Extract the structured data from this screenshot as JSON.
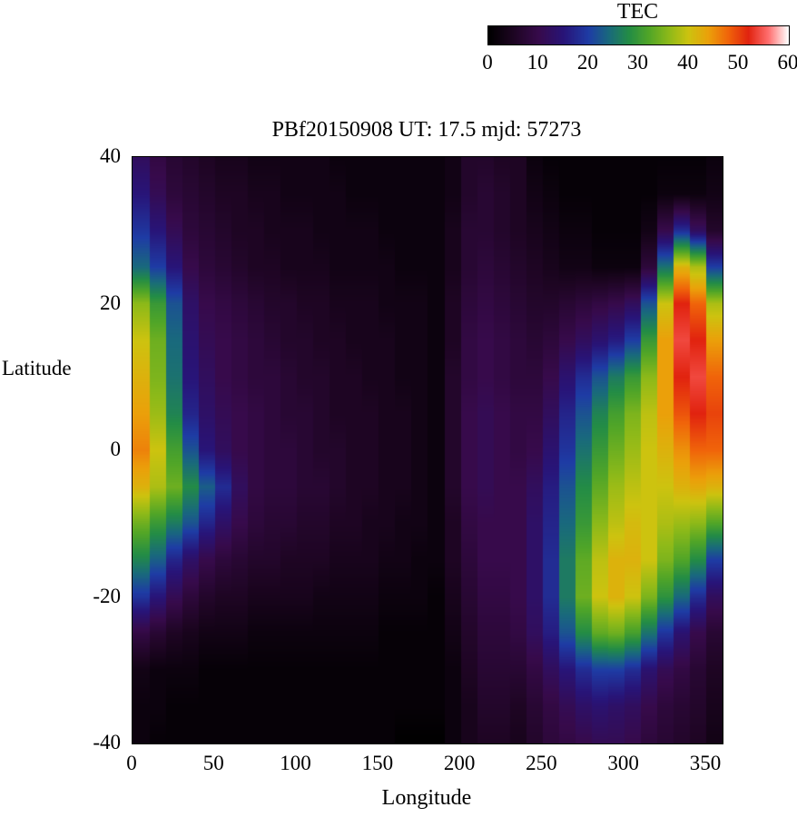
{
  "title": "PBf20150908  UT: 17.5  mjd: 57273",
  "colorbar": {
    "title": "TEC",
    "min": 0,
    "max": 60,
    "ticks": [
      0,
      10,
      20,
      30,
      40,
      50,
      60
    ]
  },
  "axes": {
    "xlabel": "Longitude",
    "ylabel": "Latitude",
    "x_range": [
      0,
      360
    ],
    "y_range": [
      -40,
      40
    ],
    "x_ticks": [
      0,
      50,
      100,
      150,
      200,
      250,
      300,
      350
    ],
    "y_ticks": [
      40,
      20,
      0,
      -20,
      -40
    ]
  },
  "chart_data": {
    "type": "heatmap",
    "title": "PBf20150908  UT: 17.5  mjd: 57273",
    "xlabel": "Longitude",
    "ylabel": "Latitude",
    "value_label": "TEC",
    "value_range": [
      0,
      60
    ],
    "lons": [
      0,
      10,
      20,
      30,
      40,
      50,
      60,
      70,
      80,
      90,
      100,
      110,
      120,
      130,
      140,
      150,
      160,
      170,
      180,
      190,
      200,
      210,
      220,
      230,
      240,
      250,
      260,
      270,
      280,
      290,
      300,
      310,
      320,
      330,
      340,
      350
    ],
    "lats": [
      40,
      35,
      30,
      25,
      20,
      15,
      10,
      5,
      0,
      -5,
      -10,
      -15,
      -20,
      -25,
      -30,
      -35,
      -40
    ],
    "values": [
      [
        12,
        9,
        7,
        6,
        5,
        4,
        4,
        3,
        3,
        3,
        3,
        3,
        2,
        2,
        2,
        2,
        2,
        2,
        2,
        3,
        6,
        6,
        5,
        5,
        2,
        1,
        1,
        1,
        1,
        1,
        1,
        1,
        1,
        1,
        1,
        2
      ],
      [
        15,
        11,
        8,
        7,
        6,
        5,
        5,
        4,
        4,
        3,
        3,
        3,
        3,
        2,
        2,
        2,
        2,
        2,
        2,
        3,
        6,
        7,
        6,
        5,
        3,
        2,
        1,
        1,
        1,
        1,
        1,
        1,
        2,
        2,
        2,
        3
      ],
      [
        19,
        15,
        11,
        8,
        7,
        6,
        5,
        5,
        4,
        4,
        4,
        3,
        3,
        3,
        3,
        2,
        2,
        2,
        2,
        4,
        7,
        7,
        6,
        5,
        4,
        3,
        2,
        2,
        1,
        1,
        1,
        3,
        10,
        18,
        12,
        6
      ],
      [
        24,
        20,
        15,
        10,
        8,
        7,
        6,
        5,
        5,
        4,
        4,
        4,
        3,
        3,
        3,
        3,
        2,
        2,
        2,
        4,
        7,
        8,
        7,
        6,
        5,
        4,
        3,
        3,
        2,
        2,
        2,
        8,
        25,
        42,
        38,
        20
      ],
      [
        36,
        30,
        22,
        13,
        10,
        9,
        8,
        7,
        6,
        6,
        5,
        5,
        4,
        4,
        4,
        3,
        3,
        3,
        2,
        5,
        8,
        9,
        8,
        7,
        6,
        6,
        7,
        8,
        9,
        10,
        12,
        22,
        40,
        52,
        48,
        38
      ],
      [
        40,
        34,
        24,
        14,
        11,
        10,
        9,
        8,
        7,
        6,
        6,
        5,
        5,
        4,
        4,
        4,
        3,
        3,
        2,
        5,
        9,
        10,
        9,
        8,
        7,
        8,
        10,
        12,
        14,
        16,
        20,
        30,
        44,
        54,
        52,
        44
      ],
      [
        42,
        35,
        25,
        15,
        12,
        10,
        9,
        8,
        8,
        7,
        6,
        6,
        5,
        5,
        4,
        4,
        3,
        3,
        2,
        6,
        9,
        10,
        9,
        8,
        8,
        10,
        14,
        18,
        22,
        26,
        30,
        36,
        44,
        52,
        54,
        48
      ],
      [
        44,
        37,
        27,
        17,
        13,
        11,
        10,
        9,
        8,
        7,
        7,
        6,
        5,
        5,
        5,
        4,
        4,
        3,
        2,
        6,
        10,
        11,
        10,
        9,
        9,
        12,
        17,
        22,
        27,
        31,
        35,
        39,
        44,
        49,
        52,
        50
      ],
      [
        46,
        40,
        31,
        22,
        15,
        12,
        10,
        9,
        8,
        8,
        7,
        6,
        6,
        5,
        5,
        4,
        4,
        3,
        2,
        6,
        10,
        11,
        10,
        9,
        10,
        14,
        19,
        25,
        30,
        34,
        37,
        40,
        42,
        45,
        48,
        48
      ],
      [
        42,
        38,
        34,
        28,
        23,
        18,
        12,
        9,
        8,
        8,
        7,
        7,
        6,
        5,
        5,
        4,
        4,
        3,
        2,
        6,
        10,
        11,
        10,
        10,
        12,
        16,
        22,
        28,
        33,
        37,
        39,
        40,
        40,
        42,
        43,
        42
      ],
      [
        34,
        30,
        26,
        22,
        17,
        13,
        10,
        8,
        7,
        7,
        6,
        6,
        5,
        5,
        4,
        4,
        3,
        3,
        2,
        5,
        9,
        10,
        10,
        10,
        13,
        17,
        24,
        30,
        36,
        39,
        41,
        40,
        38,
        37,
        36,
        32
      ],
      [
        27,
        23,
        17,
        13,
        10,
        8,
        7,
        6,
        6,
        5,
        5,
        5,
        4,
        4,
        4,
        3,
        3,
        2,
        2,
        5,
        8,
        10,
        10,
        10,
        13,
        18,
        26,
        33,
        39,
        42,
        42,
        40,
        35,
        32,
        28,
        20
      ],
      [
        19,
        15,
        11,
        8,
        6,
        5,
        5,
        4,
        4,
        4,
        4,
        3,
        3,
        3,
        3,
        2,
        2,
        2,
        1,
        4,
        7,
        9,
        9,
        10,
        13,
        18,
        26,
        34,
        40,
        42,
        40,
        35,
        29,
        24,
        18,
        12
      ],
      [
        9,
        7,
        5,
        4,
        3,
        3,
        3,
        2,
        2,
        2,
        2,
        2,
        2,
        2,
        2,
        1,
        1,
        1,
        1,
        3,
        6,
        8,
        8,
        9,
        12,
        16,
        22,
        28,
        33,
        34,
        31,
        25,
        19,
        14,
        10,
        7
      ],
      [
        3,
        2,
        2,
        2,
        1,
        1,
        1,
        1,
        1,
        1,
        1,
        1,
        1,
        1,
        1,
        1,
        1,
        1,
        1,
        2,
        5,
        7,
        7,
        7,
        9,
        12,
        15,
        18,
        20,
        20,
        18,
        14,
        11,
        9,
        7,
        5
      ],
      [
        2,
        2,
        1,
        1,
        1,
        1,
        1,
        1,
        1,
        1,
        1,
        1,
        1,
        1,
        1,
        1,
        1,
        1,
        1,
        2,
        4,
        6,
        6,
        5,
        7,
        9,
        11,
        13,
        14,
        13,
        12,
        10,
        8,
        7,
        6,
        4
      ],
      [
        2,
        1,
        1,
        1,
        1,
        1,
        1,
        1,
        1,
        1,
        1,
        1,
        1,
        1,
        1,
        1,
        0,
        0,
        0,
        2,
        4,
        5,
        5,
        4,
        6,
        8,
        9,
        10,
        11,
        11,
        10,
        8,
        7,
        6,
        5,
        3
      ]
    ],
    "colormap": [
      [
        0,
        0,
        0,
        0
      ],
      [
        5,
        30,
        5,
        35
      ],
      [
        10,
        55,
        10,
        75
      ],
      [
        15,
        40,
        20,
        120
      ],
      [
        20,
        30,
        60,
        165
      ],
      [
        24,
        25,
        105,
        125
      ],
      [
        28,
        35,
        140,
        70
      ],
      [
        32,
        80,
        165,
        40
      ],
      [
        36,
        140,
        185,
        25
      ],
      [
        40,
        205,
        195,
        15
      ],
      [
        44,
        235,
        160,
        10
      ],
      [
        48,
        240,
        100,
        10
      ],
      [
        52,
        225,
        35,
        15
      ],
      [
        56,
        255,
        110,
        110
      ],
      [
        60,
        255,
        255,
        255
      ]
    ]
  }
}
